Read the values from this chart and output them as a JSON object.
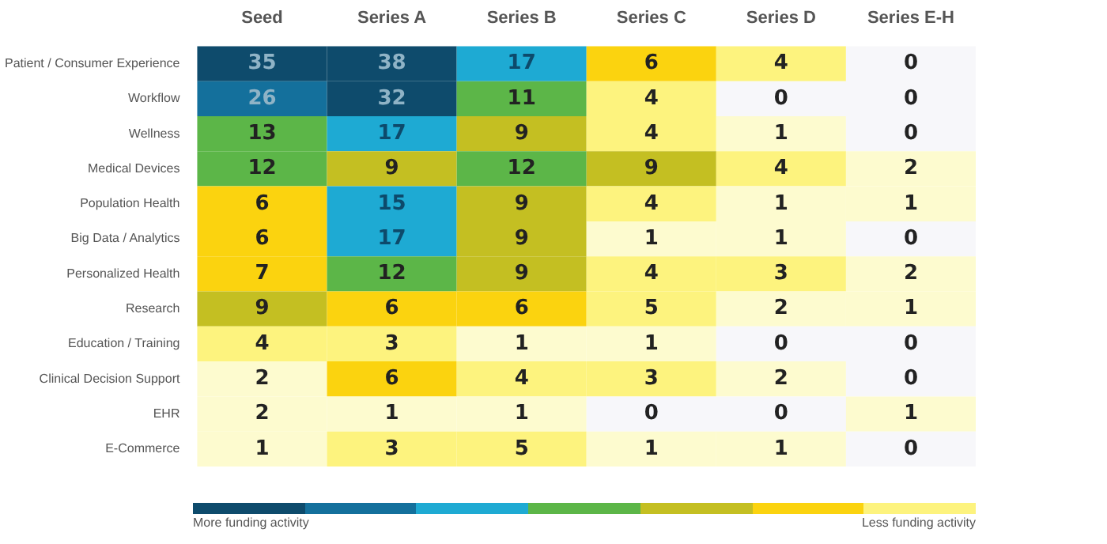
{
  "chart_data": {
    "type": "heatmap",
    "categories": [
      "Seed",
      "Series A",
      "Series B",
      "Series C",
      "Series D",
      "Series E-H"
    ],
    "y_categories": [
      "Patient / Consumer Experience",
      "Workflow",
      "Wellness",
      "Medical Devices",
      "Population Health",
      "Big Data / Analytics",
      "Personalized Health",
      "Research",
      "Education / Training",
      "Clinical Decision Support",
      "EHR",
      "E-Commerce"
    ],
    "cells": [
      [
        35,
        38,
        17,
        6,
        4,
        0
      ],
      [
        26,
        32,
        11,
        4,
        0,
        0
      ],
      [
        13,
        17,
        9,
        4,
        1,
        0
      ],
      [
        12,
        9,
        12,
        9,
        4,
        2
      ],
      [
        6,
        15,
        9,
        4,
        1,
        1
      ],
      [
        6,
        17,
        9,
        1,
        1,
        0
      ],
      [
        7,
        12,
        9,
        4,
        3,
        2
      ],
      [
        9,
        6,
        6,
        5,
        2,
        1
      ],
      [
        4,
        3,
        1,
        1,
        0,
        0
      ],
      [
        2,
        6,
        4,
        3,
        2,
        0
      ],
      [
        2,
        1,
        1,
        0,
        0,
        1
      ],
      [
        1,
        3,
        5,
        1,
        1,
        0
      ]
    ],
    "colors": [
      "#0e4b6c",
      "#14709c",
      "#1eaad3",
      "#5cb648",
      "#c4bf22",
      "#fbd30f",
      "#fdf37e",
      "#fdfbcf",
      "#f7f7fa"
    ],
    "data_labels": true,
    "annotations": [
      "More funding activity",
      "Less funding activity"
    ]
  }
}
